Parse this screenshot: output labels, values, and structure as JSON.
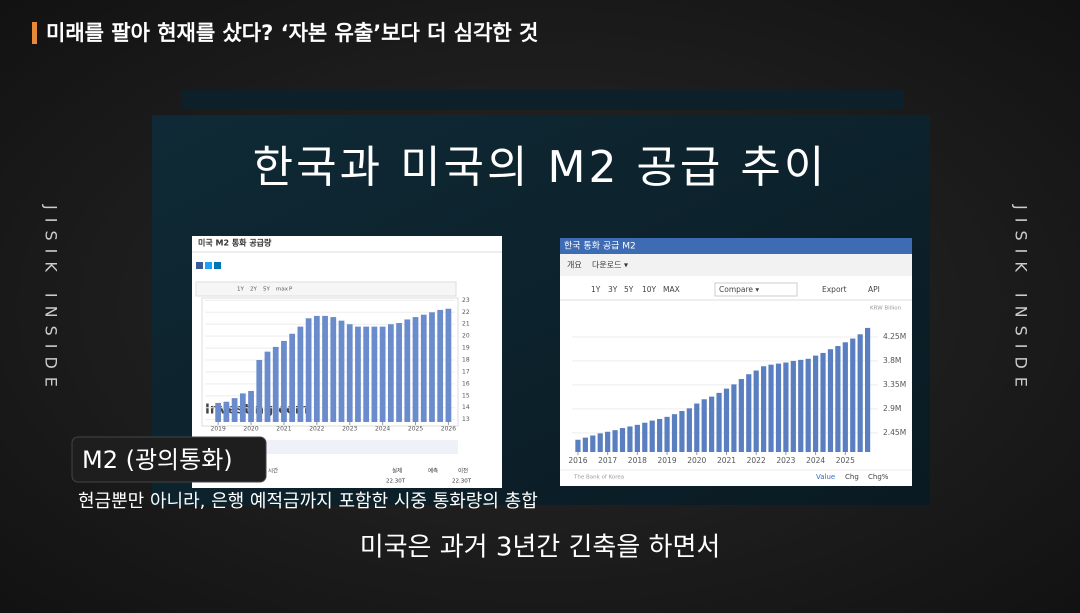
{
  "header": {
    "title": "미래를 팔아 현재를 샀다? ‘자본 유출’보다 더 심각한 것"
  },
  "side": {
    "left": "JISIK INSIDE",
    "right": "JISIK INSIDE"
  },
  "slide": {
    "title": "한국과 미국의 M2 공급 추이"
  },
  "chart_data": [
    {
      "type": "bar",
      "title": "미국 M2 통화 공급량",
      "watermark": "Investing.com",
      "buttons": [
        "1Y",
        "2Y",
        "5Y",
        "max",
        "P"
      ],
      "table": {
        "headers": [
          "시간",
          "실제",
          "예측",
          "이전"
        ],
        "row": [
          "22.30T",
          "22.30T"
        ]
      },
      "color": "#6a8bcc",
      "x": [
        2019,
        2019.25,
        2019.5,
        2019.75,
        2020,
        2020.25,
        2020.5,
        2020.75,
        2021,
        2021.25,
        2021.5,
        2021.75,
        2022,
        2022.25,
        2022.5,
        2022.75,
        2023,
        2023.25,
        2023.5,
        2023.75,
        2024,
        2024.25,
        2024.5,
        2024.75,
        2025,
        2025.25,
        2025.5,
        2025.75,
        2026
      ],
      "values": [
        14.4,
        14.5,
        14.8,
        15.2,
        15.4,
        18.0,
        18.7,
        19.1,
        19.6,
        20.2,
        20.8,
        21.5,
        21.7,
        21.7,
        21.6,
        21.3,
        21.0,
        20.8,
        20.8,
        20.8,
        20.8,
        21.0,
        21.1,
        21.4,
        21.6,
        21.8,
        22.0,
        22.2,
        22.3
      ],
      "xlim": [
        2018.6,
        2026.2
      ],
      "xticks": [
        2019,
        2020,
        2021,
        2022,
        2023,
        2024,
        2025,
        2026
      ],
      "ylim": [
        12.8,
        23.2
      ],
      "yticks": [
        13,
        14,
        15,
        16,
        17,
        18,
        19,
        20,
        21,
        22,
        23
      ]
    },
    {
      "type": "bar",
      "title": "한국 통화 공급 M2",
      "tabs": [
        "개요",
        "다운로드 ▾"
      ],
      "buttons": [
        "1Y",
        "3Y",
        "5Y",
        "10Y",
        "MAX",
        "Compare ▾",
        "Export",
        "API"
      ],
      "unit": "KRW Billion",
      "source": "The Bank of Korea",
      "footer": [
        "Value",
        "Chg",
        "Chg%"
      ],
      "color": "#5a7fc0",
      "x": [
        2016,
        2016.25,
        2016.5,
        2016.75,
        2017,
        2017.25,
        2017.5,
        2017.75,
        2018,
        2018.25,
        2018.5,
        2018.75,
        2019,
        2019.25,
        2019.5,
        2019.75,
        2020,
        2020.25,
        2020.5,
        2020.75,
        2021,
        2021.25,
        2021.5,
        2021.75,
        2022,
        2022.25,
        2022.5,
        2022.75,
        2023,
        2023.25,
        2023.5,
        2023.75,
        2024,
        2024.25,
        2024.5,
        2024.75,
        2025,
        2025.25,
        2025.5,
        2025.75
      ],
      "values": [
        2320000,
        2360000,
        2400000,
        2440000,
        2470000,
        2500000,
        2540000,
        2570000,
        2600000,
        2640000,
        2680000,
        2710000,
        2750000,
        2800000,
        2860000,
        2910000,
        3000000,
        3080000,
        3130000,
        3200000,
        3280000,
        3360000,
        3460000,
        3550000,
        3620000,
        3700000,
        3730000,
        3750000,
        3770000,
        3800000,
        3820000,
        3840000,
        3900000,
        3950000,
        4020000,
        4080000,
        4150000,
        4220000,
        4300000,
        4420000
      ],
      "xlim": [
        2015.8,
        2026.1
      ],
      "xticks": [
        2016,
        2017,
        2018,
        2019,
        2020,
        2021,
        2022,
        2023,
        2024,
        2025
      ],
      "ylim": [
        2090000,
        4850000
      ],
      "yticks": [
        {
          "value": 2450000,
          "label": "2.45M"
        },
        {
          "value": 2900000,
          "label": "2.9M"
        },
        {
          "value": 3350000,
          "label": "3.35M"
        },
        {
          "value": 3800000,
          "label": "3.8M"
        },
        {
          "value": 4250000,
          "label": "4.25M"
        }
      ]
    }
  ],
  "captions": {
    "term": "M2 (광의통화)",
    "definition": "현금뿐만 아니라, 은행 예적금까지 포함한 시중 통화량의 총합",
    "subtitle": "미국은 과거 3년간 긴축을 하면서"
  }
}
